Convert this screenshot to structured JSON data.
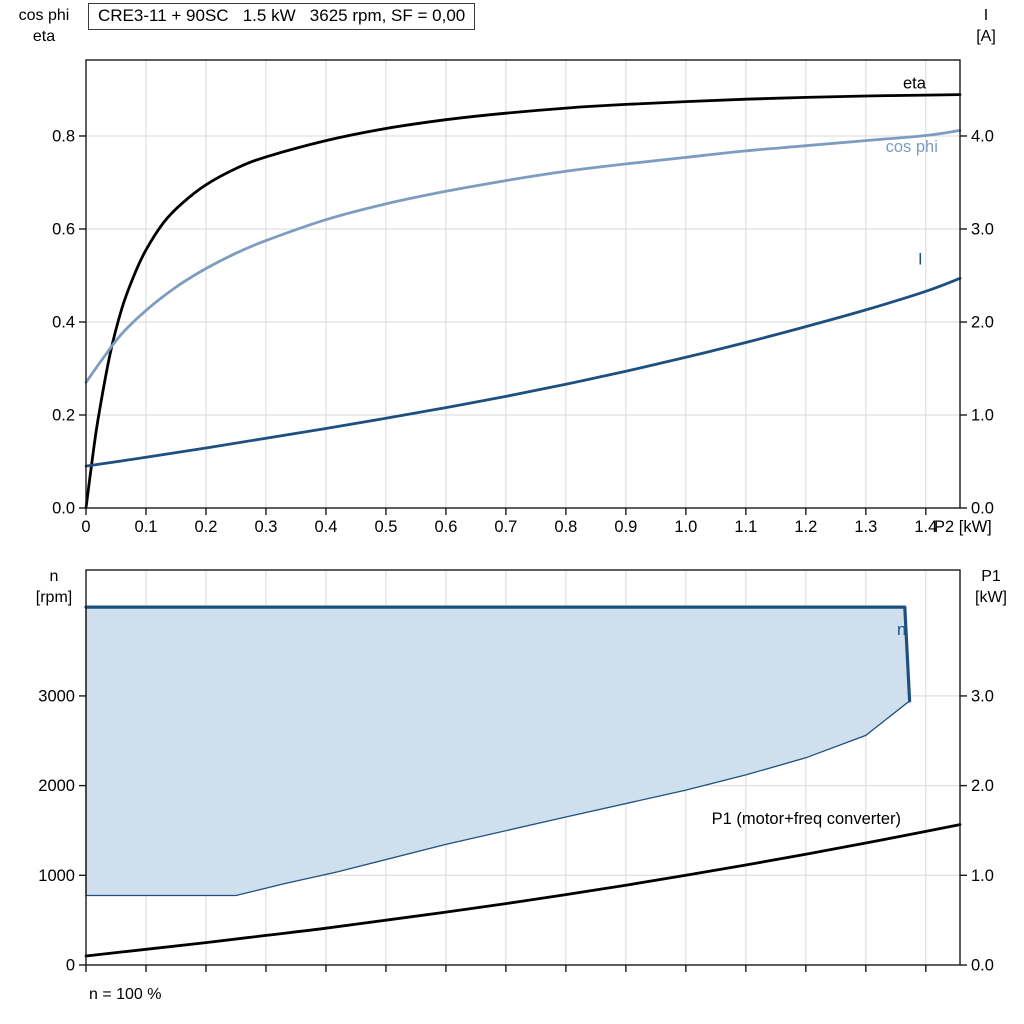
{
  "figure": {
    "title": "CRE3-11 + 90SC   1.5 kW   3625 rpm, SF = 0,00",
    "footnote": "n = 100 %"
  },
  "chart_data": [
    {
      "type": "line",
      "panel": "top",
      "title": "CRE3-11 + 90SC   1.5 kW   3625 rpm, SF = 0,00",
      "xlabel": "P2 [kW]",
      "ylabel_left": [
        "cos phi",
        "eta"
      ],
      "ylabel_right": [
        "I",
        "[A]"
      ],
      "xlim": [
        0,
        1.457
      ],
      "ylim_left": [
        0,
        0.9634
      ],
      "ylim_right": [
        0,
        4.817
      ],
      "xticks": [
        0,
        0.1,
        0.2,
        0.3,
        0.4,
        0.5,
        0.6,
        0.7,
        0.8,
        0.9,
        1.0,
        1.1,
        1.2,
        1.3,
        1.4
      ],
      "xtick_labels": [
        "0",
        "0.1",
        "0.2",
        "0.3",
        "0.4",
        "0.5",
        "0.6",
        "0.7",
        "0.8",
        "0.9",
        "1.0",
        "1.1",
        "1.2",
        "1.3",
        "1.4"
      ],
      "yticks_left": [
        0,
        0.2,
        0.4,
        0.6,
        0.8
      ],
      "ytick_labels_left": [
        "0.0",
        "0.2",
        "0.4",
        "0.6",
        "0.8"
      ],
      "yticks_right": [
        0,
        1,
        2,
        3,
        4
      ],
      "ytick_labels_right": [
        "0.0",
        "1.0",
        "2.0",
        "3.0",
        "4.0"
      ],
      "grid": true,
      "legend_position": "inline-labels",
      "series": [
        {
          "name": "eta",
          "axis": "left",
          "color": "#000000",
          "width": 2.8,
          "smooth": true,
          "x": [
            0,
            0.01,
            0.02,
            0.04,
            0.06,
            0.08,
            0.1,
            0.13,
            0.16,
            0.2,
            0.25,
            0.3,
            0.4,
            0.5,
            0.6,
            0.7,
            0.8,
            0.9,
            1.0,
            1.1,
            1.2,
            1.3,
            1.4,
            1.457
          ],
          "y": [
            0,
            0.1,
            0.19,
            0.33,
            0.43,
            0.5,
            0.555,
            0.615,
            0.655,
            0.695,
            0.73,
            0.755,
            0.79,
            0.816,
            0.835,
            0.849,
            0.86,
            0.868,
            0.874,
            0.879,
            0.883,
            0.886,
            0.888,
            0.889
          ]
        },
        {
          "name": "cos phi",
          "axis": "left",
          "color": "#7d9dc0",
          "width": 2.8,
          "smooth": true,
          "x": [
            0,
            0.03,
            0.06,
            0.1,
            0.15,
            0.2,
            0.25,
            0.3,
            0.4,
            0.5,
            0.6,
            0.7,
            0.8,
            0.9,
            1.0,
            1.1,
            1.2,
            1.3,
            1.4,
            1.457
          ],
          "y": [
            0.27,
            0.325,
            0.375,
            0.425,
            0.475,
            0.515,
            0.548,
            0.575,
            0.62,
            0.654,
            0.681,
            0.704,
            0.724,
            0.74,
            0.754,
            0.768,
            0.779,
            0.79,
            0.801,
            0.812
          ]
        },
        {
          "name": "I",
          "axis": "right",
          "color": "#1d5080",
          "width": 2.8,
          "smooth": true,
          "x": [
            0,
            0.1,
            0.2,
            0.3,
            0.4,
            0.5,
            0.6,
            0.7,
            0.8,
            0.9,
            1.0,
            1.1,
            1.2,
            1.3,
            1.4,
            1.457
          ],
          "y": [
            0.45,
            0.545,
            0.645,
            0.75,
            0.855,
            0.965,
            1.08,
            1.2,
            1.33,
            1.47,
            1.62,
            1.78,
            1.95,
            2.13,
            2.33,
            2.47
          ]
        }
      ],
      "annotations": [
        {
          "text": "eta",
          "x": 1.362,
          "y": 0.902,
          "axis": "left",
          "color": "#000000"
        },
        {
          "text": "cos phi",
          "x": 1.333,
          "y": 0.766,
          "axis": "left",
          "color": "#7d9dc0"
        },
        {
          "text": "I",
          "x": 1.387,
          "y": 2.62,
          "axis": "right",
          "color": "#1d5080"
        }
      ]
    },
    {
      "type": "line",
      "panel": "bottom",
      "footnote": "n = 100 %",
      "xlabel": "",
      "ylabel_left": [
        "n",
        "[rpm]"
      ],
      "ylabel_right": [
        "P1",
        "[kW]"
      ],
      "xlim": [
        0,
        1.457
      ],
      "ylim_left": [
        0,
        4404
      ],
      "ylim_right": [
        0,
        4.404
      ],
      "xticks": [
        0,
        0.1,
        0.2,
        0.3,
        0.4,
        0.5,
        0.6,
        0.7,
        0.8,
        0.9,
        1.0,
        1.1,
        1.2,
        1.3,
        1.4
      ],
      "xtick_labels": null,
      "yticks_left": [
        0,
        1000,
        2000,
        3000
      ],
      "ytick_labels_left": [
        "0",
        "1000",
        "2000",
        "3000"
      ],
      "yticks_right": [
        0,
        1,
        2,
        3
      ],
      "ytick_labels_right": [
        "0.0",
        "1.0",
        "2.0",
        "3.0"
      ],
      "grid": true,
      "region": {
        "name": "speed-operating-range",
        "fill": "#d0dfed",
        "stroke": "#1d5080",
        "points": [
          [
            0,
            775
          ],
          [
            0.25,
            775
          ],
          [
            0.33,
            905
          ],
          [
            0.42,
            1040
          ],
          [
            0.6,
            1345
          ],
          [
            0.8,
            1650
          ],
          [
            1.0,
            1950
          ],
          [
            1.1,
            2120
          ],
          [
            1.2,
            2310
          ],
          [
            1.3,
            2560
          ],
          [
            1.373,
            2945
          ],
          [
            1.365,
            3990
          ],
          [
            0,
            3990
          ]
        ]
      },
      "series": [
        {
          "name": "n limit",
          "axis": "left",
          "color": "#1d5080",
          "width": 3.2,
          "smooth": false,
          "x": [
            0,
            1.365,
            1.373
          ],
          "y": [
            3990,
            3990,
            2945
          ]
        },
        {
          "name": "P1 (motor+freq converter)",
          "axis": "right",
          "color": "#000000",
          "width": 2.8,
          "smooth": true,
          "x": [
            0,
            0.1,
            0.2,
            0.3,
            0.4,
            0.5,
            0.6,
            0.7,
            0.8,
            0.9,
            1.0,
            1.1,
            1.2,
            1.3,
            1.4,
            1.457
          ],
          "y": [
            0.1,
            0.175,
            0.25,
            0.33,
            0.41,
            0.5,
            0.59,
            0.685,
            0.785,
            0.89,
            1.0,
            1.115,
            1.235,
            1.36,
            1.49,
            1.565
          ]
        }
      ],
      "annotations": [
        {
          "text": "n",
          "x": 1.352,
          "y": 3680,
          "axis": "left",
          "color": "#1d5080"
        },
        {
          "text": "P1 (motor+freq converter)",
          "x": 1.043,
          "y": 1.572,
          "axis": "right",
          "color": "#000000"
        }
      ]
    }
  ]
}
